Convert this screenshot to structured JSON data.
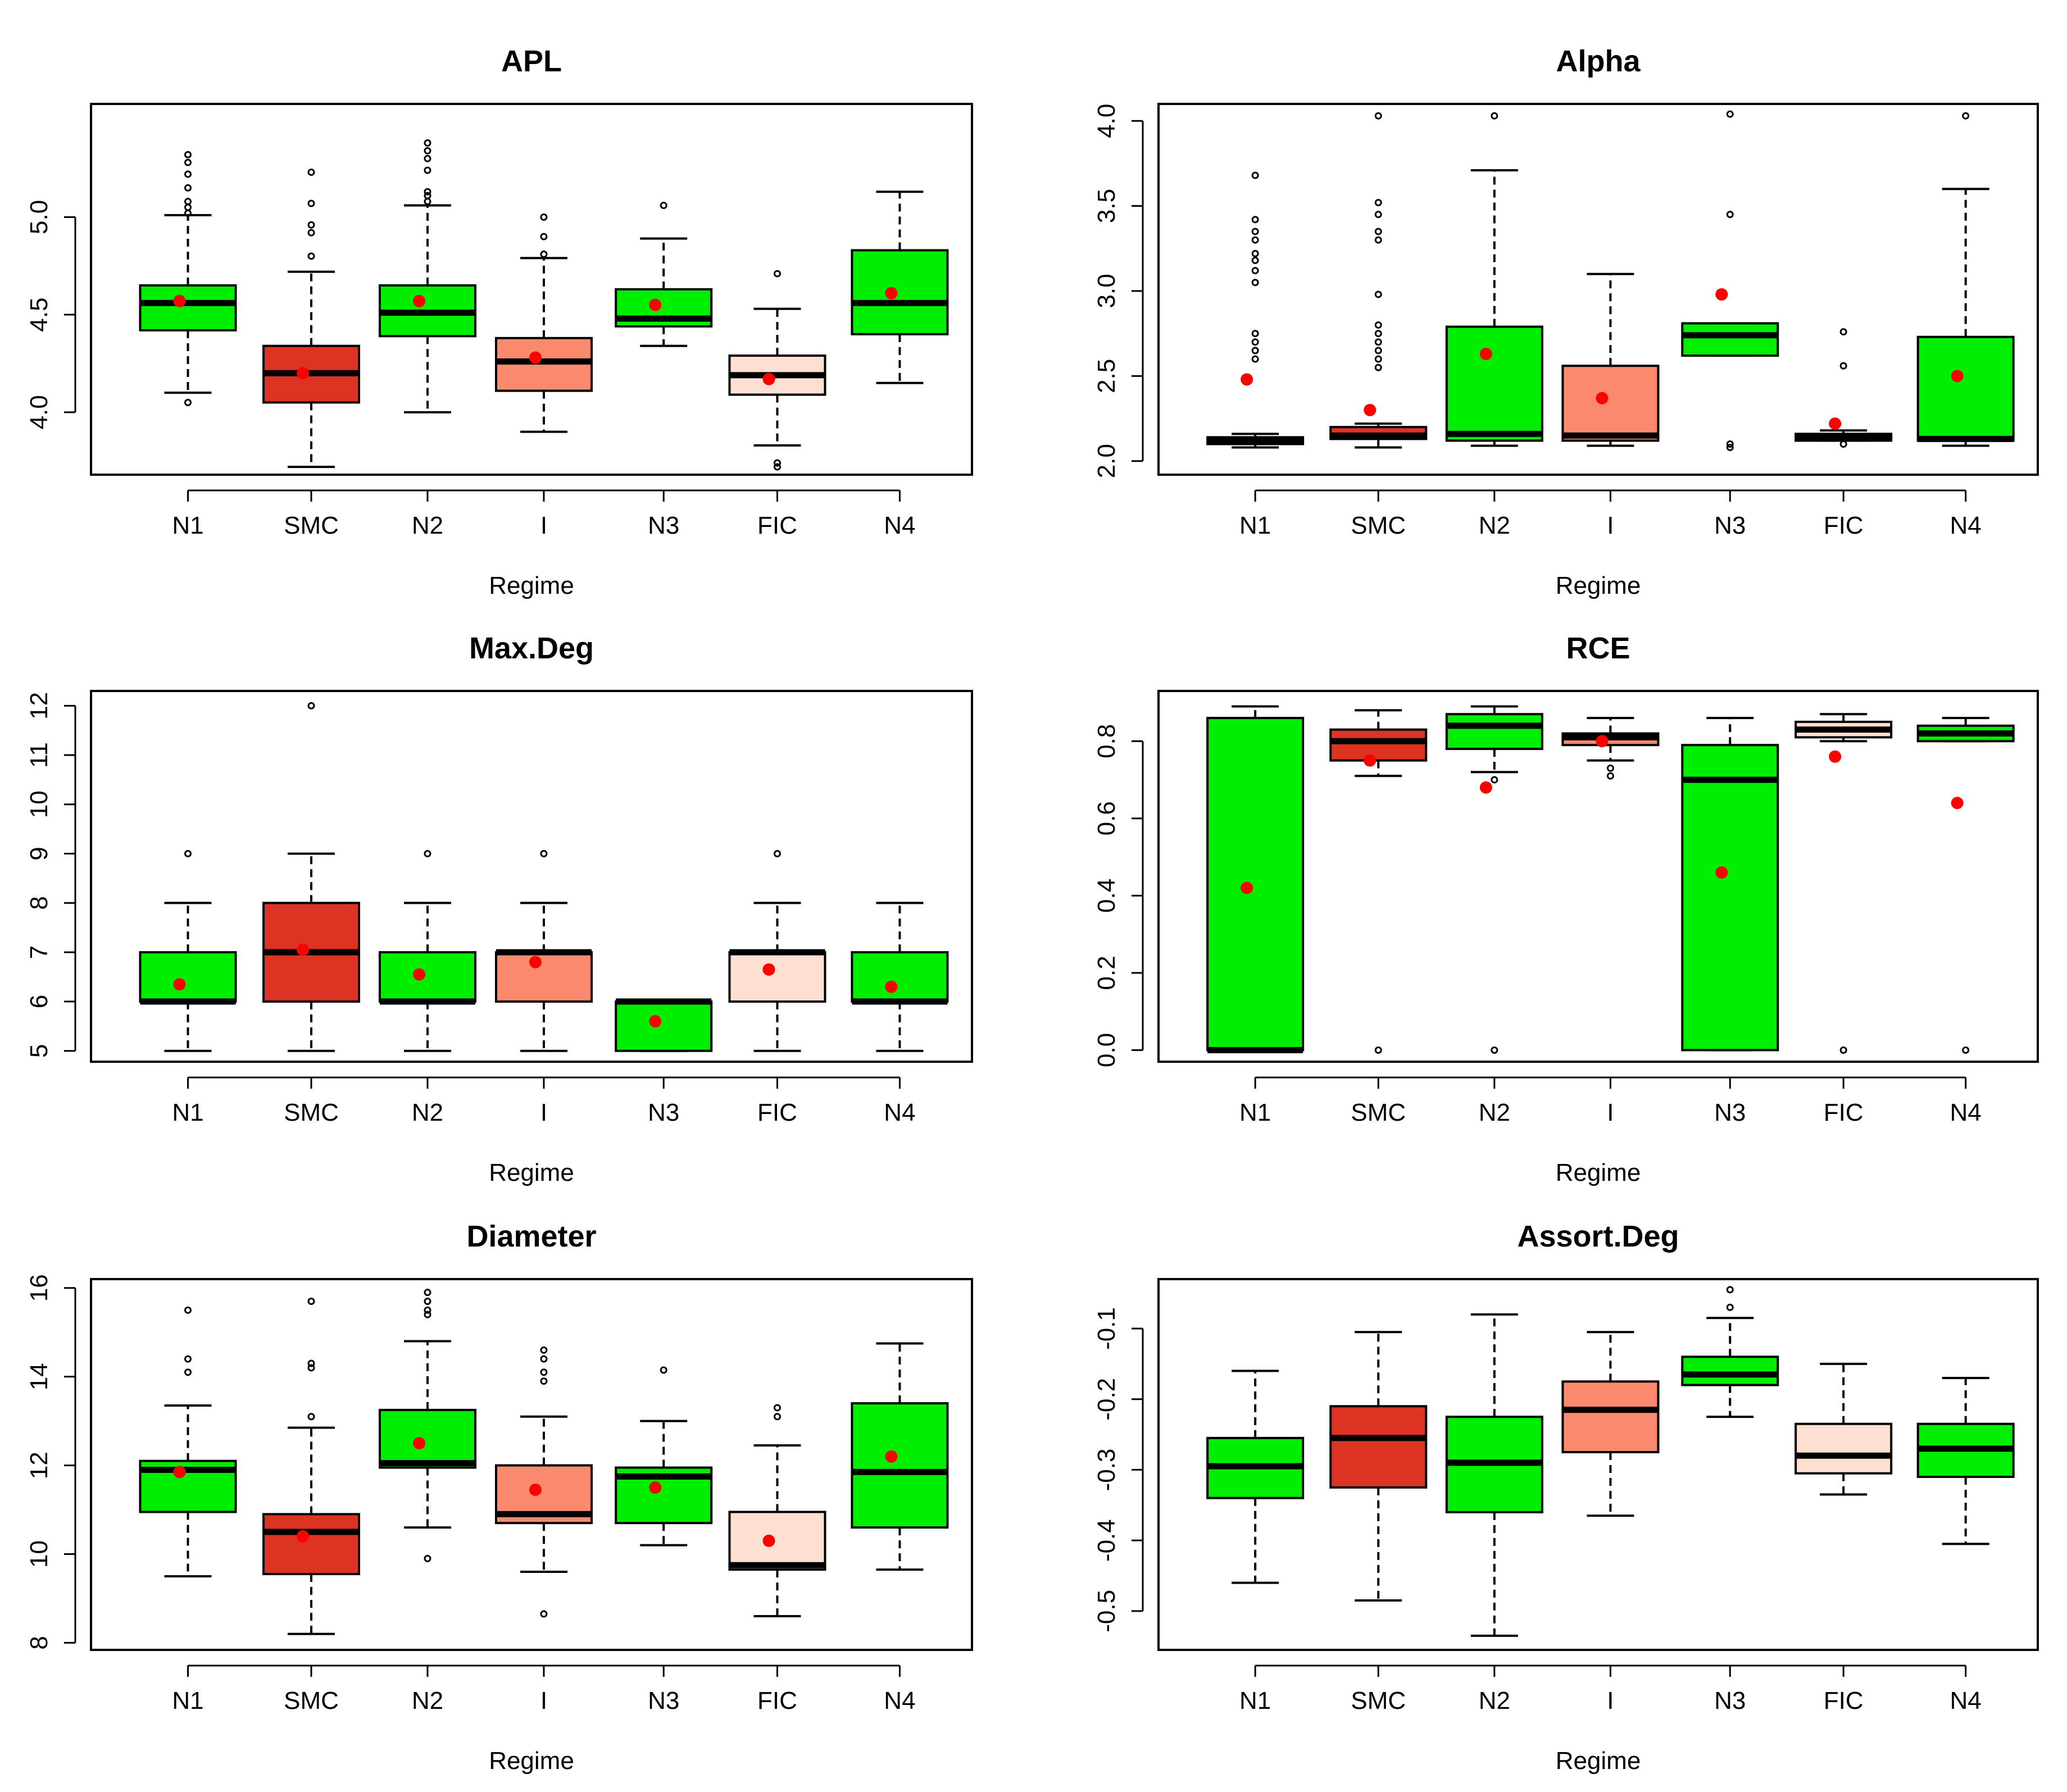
{
  "chart_data": [
    {
      "type": "boxplot",
      "title": "APL",
      "xlabel": "Regime",
      "ylabel": "",
      "categories": [
        "N1",
        "SMC",
        "N2",
        "I",
        "N3",
        "FIC",
        "N4"
      ],
      "ylim": [
        3.68,
        5.58
      ],
      "yticks": [
        4.0,
        4.5,
        5.0
      ],
      "ytick_labels": [
        "4.0",
        "4.5",
        "5.0"
      ],
      "boxes": [
        {
          "lo": 4.1,
          "q1": 4.42,
          "med": 4.56,
          "q3": 4.65,
          "hi": 5.01,
          "mean": 4.57,
          "color": "#00ee00",
          "outliers": [
            4.05,
            5.02,
            5.05,
            5.08,
            5.15,
            5.22,
            5.28,
            5.32
          ]
        },
        {
          "lo": 3.72,
          "q1": 4.05,
          "med": 4.2,
          "q3": 4.34,
          "hi": 4.72,
          "mean": 4.2,
          "color": "#dd3322",
          "outliers": [
            4.8,
            4.92,
            4.96,
            5.07,
            5.23
          ]
        },
        {
          "lo": 4.0,
          "q1": 4.39,
          "med": 4.51,
          "q3": 4.65,
          "hi": 5.06,
          "mean": 4.57,
          "color": "#00ee00",
          "outliers": [
            5.08,
            5.11,
            5.13,
            5.24,
            5.3,
            5.34,
            5.38
          ]
        },
        {
          "lo": 3.9,
          "q1": 4.11,
          "med": 4.26,
          "q3": 4.38,
          "hi": 4.79,
          "mean": 4.28,
          "color": "#fa8a6e",
          "outliers": [
            4.81,
            4.9,
            5.0
          ]
        },
        {
          "lo": 4.34,
          "q1": 4.44,
          "med": 4.48,
          "q3": 4.63,
          "hi": 4.89,
          "mean": 4.55,
          "color": "#00ee00",
          "outliers": [
            5.06
          ]
        },
        {
          "lo": 3.83,
          "q1": 4.09,
          "med": 4.19,
          "q3": 4.29,
          "hi": 4.53,
          "mean": 4.17,
          "color": "#fee0d2",
          "outliers": [
            3.72,
            3.74,
            4.71
          ]
        },
        {
          "lo": 4.15,
          "q1": 4.4,
          "med": 4.56,
          "q3": 4.83,
          "hi": 5.13,
          "mean": 4.61,
          "color": "#00ee00",
          "outliers": []
        }
      ]
    },
    {
      "type": "boxplot",
      "title": "Alpha",
      "xlabel": "Regime",
      "ylabel": "",
      "categories": [
        "N1",
        "SMC",
        "N2",
        "I",
        "N3",
        "FIC",
        "N4"
      ],
      "ylim": [
        1.92,
        4.1
      ],
      "yticks": [
        2.0,
        2.5,
        3.0,
        3.5,
        4.0
      ],
      "ytick_labels": [
        "2.0",
        "2.5",
        "3.0",
        "3.5",
        "4.0"
      ],
      "boxes": [
        {
          "lo": 2.08,
          "q1": 2.1,
          "med": 2.12,
          "q3": 2.14,
          "hi": 2.16,
          "mean": 2.48,
          "color": "#00ee00",
          "outliers": [
            2.6,
            2.65,
            2.7,
            2.75,
            3.05,
            3.12,
            3.18,
            3.22,
            3.3,
            3.35,
            3.42,
            3.68
          ]
        },
        {
          "lo": 2.08,
          "q1": 2.13,
          "med": 2.15,
          "q3": 2.2,
          "hi": 2.22,
          "mean": 2.3,
          "color": "#dd3322",
          "outliers": [
            2.55,
            2.6,
            2.65,
            2.7,
            2.75,
            2.8,
            2.98,
            3.3,
            3.35,
            3.45,
            3.52,
            4.03
          ]
        },
        {
          "lo": 2.09,
          "q1": 2.12,
          "med": 2.16,
          "q3": 2.79,
          "hi": 3.71,
          "mean": 2.63,
          "color": "#00ee00",
          "outliers": [
            4.03
          ]
        },
        {
          "lo": 2.09,
          "q1": 2.12,
          "med": 2.15,
          "q3": 2.56,
          "hi": 3.1,
          "mean": 2.37,
          "color": "#fa8a6e",
          "outliers": []
        },
        {
          "lo": 2.62,
          "q1": 2.62,
          "med": 2.74,
          "q3": 2.81,
          "hi": 2.81,
          "mean": 2.98,
          "color": "#00ee00",
          "outliers": [
            2.08,
            2.1,
            3.45,
            4.04
          ]
        },
        {
          "lo": 2.12,
          "q1": 2.12,
          "med": 2.14,
          "q3": 2.16,
          "hi": 2.18,
          "mean": 2.22,
          "color": "#fee0d2",
          "outliers": [
            2.1,
            2.56,
            2.76
          ]
        },
        {
          "lo": 2.09,
          "q1": 2.12,
          "med": 2.13,
          "q3": 2.73,
          "hi": 3.6,
          "mean": 2.5,
          "color": "#00ee00",
          "outliers": [
            4.03
          ]
        }
      ]
    },
    {
      "type": "boxplot",
      "title": "Max.Deg",
      "xlabel": "Regime",
      "ylabel": "",
      "categories": [
        "N1",
        "SMC",
        "N2",
        "I",
        "N3",
        "FIC",
        "N4"
      ],
      "ylim": [
        4.78,
        12.3
      ],
      "yticks": [
        5,
        6,
        7,
        8,
        9,
        10,
        11,
        12
      ],
      "ytick_labels": [
        "5",
        "6",
        "7",
        "8",
        "9",
        "10",
        "11",
        "12"
      ],
      "boxes": [
        {
          "lo": 5,
          "q1": 6,
          "med": 6,
          "q3": 7,
          "hi": 8,
          "mean": 6.35,
          "color": "#00ee00",
          "outliers": [
            9
          ]
        },
        {
          "lo": 5,
          "q1": 6,
          "med": 7,
          "q3": 8,
          "hi": 9,
          "mean": 7.05,
          "color": "#dd3322",
          "outliers": [
            12
          ]
        },
        {
          "lo": 5,
          "q1": 6,
          "med": 6,
          "q3": 7,
          "hi": 8,
          "mean": 6.55,
          "color": "#00ee00",
          "outliers": [
            9
          ]
        },
        {
          "lo": 5,
          "q1": 6,
          "med": 7,
          "q3": 7,
          "hi": 8,
          "mean": 6.8,
          "color": "#fa8a6e",
          "outliers": [
            9
          ]
        },
        {
          "lo": 5,
          "q1": 5,
          "med": 6,
          "q3": 6,
          "hi": 6,
          "mean": 5.6,
          "color": "#00ee00",
          "outliers": []
        },
        {
          "lo": 5,
          "q1": 6,
          "med": 7,
          "q3": 7,
          "hi": 8,
          "mean": 6.65,
          "color": "#fee0d2",
          "outliers": [
            9
          ]
        },
        {
          "lo": 5,
          "q1": 6,
          "med": 6,
          "q3": 7,
          "hi": 8,
          "mean": 6.3,
          "color": "#00ee00",
          "outliers": []
        }
      ]
    },
    {
      "type": "boxplot",
      "title": "RCE",
      "xlabel": "Regime",
      "ylabel": "",
      "categories": [
        "N1",
        "SMC",
        "N2",
        "I",
        "N3",
        "FIC",
        "N4"
      ],
      "ylim": [
        -0.03,
        0.93
      ],
      "yticks": [
        0.0,
        0.2,
        0.4,
        0.6,
        0.8
      ],
      "ytick_labels": [
        "0.0",
        "0.2",
        "0.4",
        "0.6",
        "0.8"
      ],
      "boxes": [
        {
          "lo": 0.0,
          "q1": 0.0,
          "med": 0.0,
          "q3": 0.86,
          "hi": 0.89,
          "mean": 0.42,
          "color": "#00ee00",
          "outliers": []
        },
        {
          "lo": 0.71,
          "q1": 0.75,
          "med": 0.8,
          "q3": 0.83,
          "hi": 0.88,
          "mean": 0.75,
          "color": "#dd3322",
          "outliers": [
            0.0
          ]
        },
        {
          "lo": 0.72,
          "q1": 0.78,
          "med": 0.84,
          "q3": 0.87,
          "hi": 0.89,
          "mean": 0.68,
          "color": "#00ee00",
          "outliers": [
            0.0,
            0.7
          ]
        },
        {
          "lo": 0.75,
          "q1": 0.79,
          "med": 0.81,
          "q3": 0.82,
          "hi": 0.86,
          "mean": 0.8,
          "color": "#fa8a6e",
          "outliers": [
            0.71,
            0.73
          ]
        },
        {
          "lo": 0.0,
          "q1": 0.0,
          "med": 0.7,
          "q3": 0.79,
          "hi": 0.86,
          "mean": 0.46,
          "color": "#00ee00",
          "outliers": []
        },
        {
          "lo": 0.8,
          "q1": 0.81,
          "med": 0.83,
          "q3": 0.85,
          "hi": 0.87,
          "mean": 0.76,
          "color": "#fee0d2",
          "outliers": [
            0.0
          ]
        },
        {
          "lo": 0.8,
          "q1": 0.8,
          "med": 0.82,
          "q3": 0.84,
          "hi": 0.86,
          "mean": 0.64,
          "color": "#00ee00",
          "outliers": [
            0.0
          ]
        }
      ]
    },
    {
      "type": "boxplot",
      "title": "Diameter",
      "xlabel": "Regime",
      "ylabel": "",
      "categories": [
        "N1",
        "SMC",
        "N2",
        "I",
        "N3",
        "FIC",
        "N4"
      ],
      "ylim": [
        7.84,
        16.2
      ],
      "yticks": [
        8,
        10,
        12,
        14,
        16
      ],
      "ytick_labels": [
        "8",
        "10",
        "12",
        "14",
        "16"
      ],
      "boxes": [
        {
          "lo": 9.5,
          "q1": 10.95,
          "med": 11.9,
          "q3": 12.1,
          "hi": 13.35,
          "mean": 11.85,
          "color": "#00ee00",
          "outliers": [
            14.1,
            14.4,
            15.5
          ]
        },
        {
          "lo": 8.2,
          "q1": 9.55,
          "med": 10.5,
          "q3": 10.9,
          "hi": 12.85,
          "mean": 10.4,
          "color": "#dd3322",
          "outliers": [
            13.1,
            14.2,
            14.3,
            15.7
          ]
        },
        {
          "lo": 10.6,
          "q1": 11.95,
          "med": 12.05,
          "q3": 13.25,
          "hi": 14.8,
          "mean": 12.5,
          "color": "#00ee00",
          "outliers": [
            9.9,
            15.4,
            15.5,
            15.7,
            15.9
          ]
        },
        {
          "lo": 9.6,
          "q1": 10.7,
          "med": 10.9,
          "q3": 12.0,
          "hi": 13.1,
          "mean": 11.45,
          "color": "#fa8a6e",
          "outliers": [
            8.65,
            13.9,
            14.1,
            14.4,
            14.6
          ]
        },
        {
          "lo": 10.2,
          "q1": 10.7,
          "med": 11.75,
          "q3": 11.95,
          "hi": 13.0,
          "mean": 11.5,
          "color": "#00ee00",
          "outliers": [
            14.15
          ]
        },
        {
          "lo": 8.6,
          "q1": 9.65,
          "med": 9.75,
          "q3": 10.95,
          "hi": 12.45,
          "mean": 10.3,
          "color": "#fee0d2",
          "outliers": [
            13.1,
            13.3
          ]
        },
        {
          "lo": 9.65,
          "q1": 10.6,
          "med": 11.85,
          "q3": 13.4,
          "hi": 14.75,
          "mean": 12.2,
          "color": "#00ee00",
          "outliers": []
        }
      ]
    },
    {
      "type": "boxplot",
      "title": "Assort.Deg",
      "xlabel": "Regime",
      "ylabel": "",
      "categories": [
        "N1",
        "SMC",
        "N2",
        "I",
        "N3",
        "FIC",
        "N4"
      ],
      "ylim": [
        -0.555,
        -0.03
      ],
      "yticks": [
        -0.5,
        -0.4,
        -0.3,
        -0.2,
        -0.1
      ],
      "ytick_labels": [
        "-0.5",
        "-0.4",
        "-0.3",
        "-0.2",
        "-0.1"
      ],
      "boxes": [
        {
          "lo": -0.46,
          "q1": -0.34,
          "med": -0.295,
          "q3": -0.255,
          "hi": -0.16,
          "mean": null,
          "color": "#00ee00",
          "outliers": []
        },
        {
          "lo": -0.485,
          "q1": -0.325,
          "med": -0.255,
          "q3": -0.21,
          "hi": -0.105,
          "mean": null,
          "color": "#dd3322",
          "outliers": []
        },
        {
          "lo": -0.535,
          "q1": -0.36,
          "med": -0.29,
          "q3": -0.225,
          "hi": -0.08,
          "mean": null,
          "color": "#00ee00",
          "outliers": []
        },
        {
          "lo": -0.365,
          "q1": -0.275,
          "med": -0.215,
          "q3": -0.175,
          "hi": -0.105,
          "mean": null,
          "color": "#fa8a6e",
          "outliers": []
        },
        {
          "lo": -0.225,
          "q1": -0.18,
          "med": -0.165,
          "q3": -0.14,
          "hi": -0.085,
          "mean": null,
          "color": "#00ee00",
          "outliers": [
            -0.045,
            -0.07
          ]
        },
        {
          "lo": -0.335,
          "q1": -0.305,
          "med": -0.28,
          "q3": -0.235,
          "hi": -0.15,
          "mean": null,
          "color": "#fee0d2",
          "outliers": []
        },
        {
          "lo": -0.405,
          "q1": -0.31,
          "med": -0.27,
          "q3": -0.235,
          "hi": -0.17,
          "mean": null,
          "color": "#00ee00",
          "outliers": []
        }
      ]
    }
  ]
}
